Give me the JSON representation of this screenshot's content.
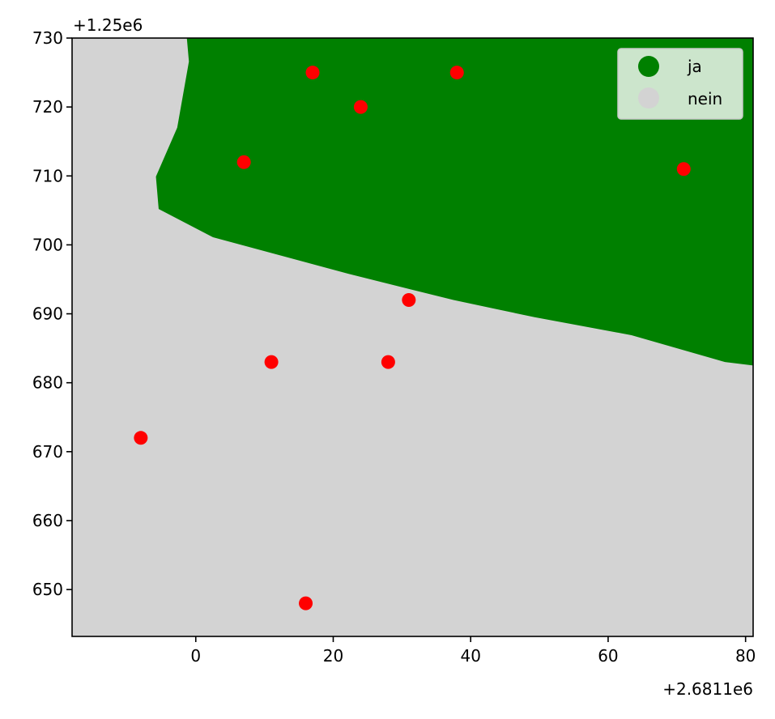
{
  "chart_data": {
    "type": "scatter",
    "title": "",
    "xlabel": "",
    "ylabel": "",
    "x_offset_label": "+2.6811e6",
    "y_offset_label": "+1.25e6",
    "xlim": [
      -18,
      81.1
    ],
    "ylim": [
      643.2,
      730
    ],
    "xticks": [
      0,
      20,
      40,
      60,
      80
    ],
    "yticks": [
      650,
      660,
      670,
      680,
      690,
      700,
      710,
      720,
      730
    ],
    "grid": false,
    "background_region": {
      "name": "nein",
      "color": "#d3d3d3"
    },
    "region": {
      "name": "ja",
      "color": "#008000",
      "boundary": [
        [
          -1.3,
          730
        ],
        [
          -1.0,
          726.6
        ],
        [
          -2.7,
          717.0
        ],
        [
          -5.8,
          709.9
        ],
        [
          -5.4,
          705.2
        ],
        [
          2.5,
          701.1
        ],
        [
          22.2,
          695.8
        ],
        [
          37.5,
          692.0
        ],
        [
          49.3,
          689.5
        ],
        [
          63.4,
          686.9
        ],
        [
          77.0,
          683.0
        ],
        [
          81.1,
          682.5
        ],
        [
          81.1,
          730
        ]
      ]
    },
    "points": {
      "color": "#ff0000",
      "x": [
        17,
        38,
        24,
        7,
        71,
        31,
        11,
        28,
        -8,
        16
      ],
      "y": [
        725,
        725,
        720,
        712,
        711,
        692,
        683,
        683,
        672,
        648
      ]
    },
    "legend": {
      "placement": "top-right",
      "entries": [
        {
          "label": "ja",
          "color": "#008000"
        },
        {
          "label": "nein",
          "color": "#d3d3d3"
        }
      ]
    }
  }
}
